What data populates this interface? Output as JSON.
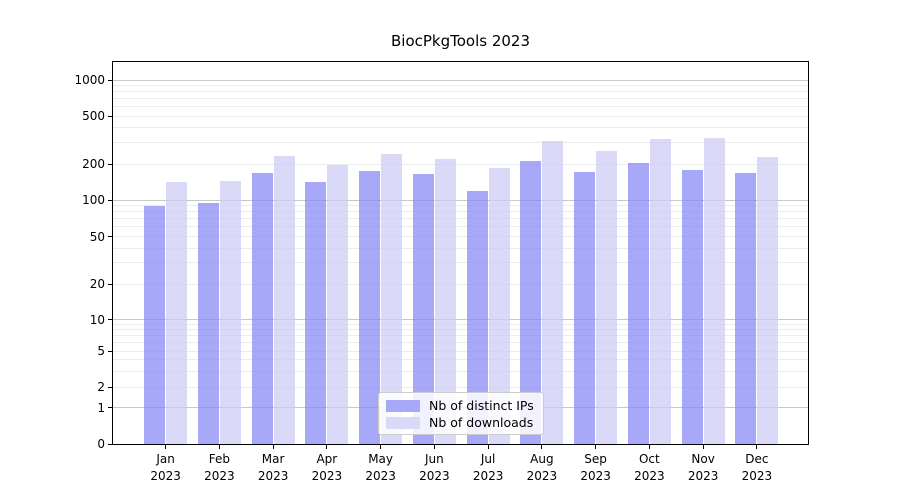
{
  "chart_data": {
    "type": "bar",
    "title": "BiocPkgTools 2023",
    "categories": [
      {
        "month": "Jan",
        "year": "2023"
      },
      {
        "month": "Feb",
        "year": "2023"
      },
      {
        "month": "Mar",
        "year": "2023"
      },
      {
        "month": "Apr",
        "year": "2023"
      },
      {
        "month": "May",
        "year": "2023"
      },
      {
        "month": "Jun",
        "year": "2023"
      },
      {
        "month": "Jul",
        "year": "2023"
      },
      {
        "month": "Aug",
        "year": "2023"
      },
      {
        "month": "Sep",
        "year": "2023"
      },
      {
        "month": "Oct",
        "year": "2023"
      },
      {
        "month": "Nov",
        "year": "2023"
      },
      {
        "month": "Dec",
        "year": "2023"
      }
    ],
    "series": [
      {
        "name": "Nb of distinct IPs",
        "color": "#a8a8f8",
        "values": [
          89,
          95,
          167,
          141,
          174,
          166,
          120,
          212,
          172,
          205,
          178,
          169
        ]
      },
      {
        "name": "Nb of downloads",
        "color": "#dadaf8",
        "values": [
          142,
          145,
          232,
          196,
          244,
          221,
          185,
          313,
          257,
          324,
          328,
          227
        ]
      }
    ],
    "yscale": "log-like with 0 baseline",
    "yticks": [
      0,
      1,
      2,
      5,
      10,
      20,
      50,
      100,
      200,
      500,
      1000
    ],
    "ylim": [
      0,
      1400
    ],
    "xlabel": "",
    "ylabel": "",
    "grid": true,
    "legend_position": "lower center"
  }
}
